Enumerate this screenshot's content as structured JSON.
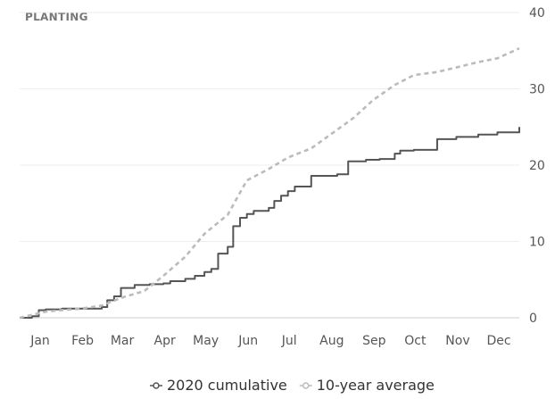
{
  "chart_data": {
    "type": "line",
    "title": "PLANTING",
    "x_ticks": [
      "Jan",
      "Feb",
      "Mar",
      "Apr",
      "May",
      "Jun",
      "Jul",
      "Aug",
      "Sep",
      "Oct",
      "Nov",
      "Dec"
    ],
    "y_ticks": [
      "0",
      "10",
      "20",
      "30",
      "40"
    ],
    "ylim": [
      0,
      40
    ],
    "grid": true,
    "y_axis_position": "right",
    "legend_position": "bottom-center",
    "series": [
      {
        "name": "2020 cumulative",
        "color": "#555555",
        "style": "solid-step",
        "x": [
          "Jan 1",
          "Jan 10",
          "Jan 15",
          "Jan 20",
          "Feb 1",
          "Feb 15",
          "Mar 1",
          "Mar 5",
          "Mar 10",
          "Mar 15",
          "Mar 25",
          "Apr 5",
          "Apr 15",
          "Apr 20",
          "May 1",
          "May 8",
          "May 15",
          "May 20",
          "May 25",
          "Jun 1",
          "Jun 5",
          "Jun 10",
          "Jun 15",
          "Jun 20",
          "Jul 1",
          "Jul 5",
          "Jul 10",
          "Jul 15",
          "Jul 20",
          "Aug 1",
          "Aug 20",
          "Aug 28",
          "Sep 10",
          "Sep 20",
          "Oct 1",
          "Oct 5",
          "Oct 15",
          "Nov 1",
          "Nov 15",
          "Dec 1",
          "Dec 15",
          "Dec 31"
        ],
        "y": [
          0,
          0.2,
          1.0,
          1.1,
          1.2,
          1.2,
          1.4,
          2.3,
          2.8,
          3.9,
          4.3,
          4.4,
          4.5,
          4.8,
          5.1,
          5.5,
          6.0,
          6.4,
          8.4,
          9.3,
          12.0,
          13.1,
          13.6,
          14.0,
          14.4,
          15.3,
          16.0,
          16.6,
          17.2,
          18.6,
          18.8,
          20.5,
          20.7,
          20.8,
          21.5,
          21.9,
          22.0,
          23.4,
          23.7,
          24.0,
          24.3,
          25.0
        ]
      },
      {
        "name": "10-year average",
        "color": "#bbbbbb",
        "style": "dashed",
        "x": [
          "Jan 1",
          "Jan 20",
          "Feb 1",
          "Feb 15",
          "Mar 1",
          "Mar 15",
          "Apr 1",
          "Apr 15",
          "May 1",
          "May 15",
          "Jun 1",
          "Jun 15",
          "Jul 1",
          "Jul 15",
          "Aug 1",
          "Aug 15",
          "Sep 1",
          "Sep 15",
          "Oct 1",
          "Oct 15",
          "Nov 1",
          "Nov 15",
          "Dec 1",
          "Dec 15",
          "Dec 31"
        ],
        "y": [
          0,
          0.8,
          1.0,
          1.2,
          1.6,
          2.6,
          3.5,
          5.5,
          8.0,
          11.0,
          13.5,
          18.0,
          19.5,
          21.0,
          22.2,
          24.0,
          26.2,
          28.5,
          30.5,
          31.8,
          32.2,
          32.8,
          33.5,
          34.0,
          35.3
        ]
      }
    ]
  }
}
